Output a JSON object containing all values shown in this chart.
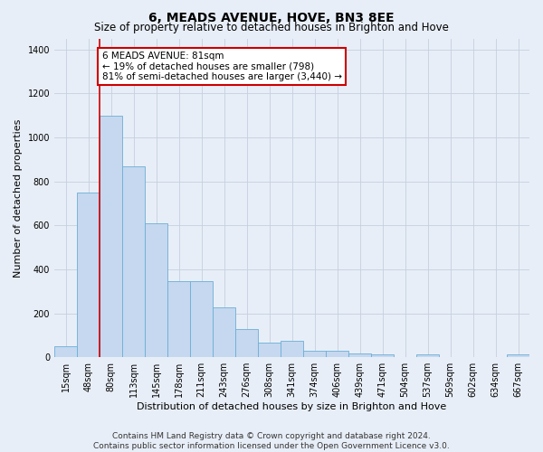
{
  "title": "6, MEADS AVENUE, HOVE, BN3 8EE",
  "subtitle": "Size of property relative to detached houses in Brighton and Hove",
  "xlabel": "Distribution of detached houses by size in Brighton and Hove",
  "ylabel": "Number of detached properties",
  "categories": [
    "15sqm",
    "48sqm",
    "80sqm",
    "113sqm",
    "145sqm",
    "178sqm",
    "211sqm",
    "243sqm",
    "276sqm",
    "308sqm",
    "341sqm",
    "374sqm",
    "406sqm",
    "439sqm",
    "471sqm",
    "504sqm",
    "537sqm",
    "569sqm",
    "602sqm",
    "634sqm",
    "667sqm"
  ],
  "values": [
    52,
    750,
    1100,
    870,
    610,
    345,
    345,
    225,
    130,
    68,
    75,
    28,
    28,
    18,
    12,
    0,
    12,
    0,
    0,
    0,
    14
  ],
  "bar_color": "#c5d8ef",
  "bar_edgecolor": "#6baed6",
  "vline_color": "#cc0000",
  "annotation_text": "6 MEADS AVENUE: 81sqm\n← 19% of detached houses are smaller (798)\n81% of semi-detached houses are larger (3,440) →",
  "annotation_box_color": "#ffffff",
  "annotation_box_edgecolor": "#cc0000",
  "ylim": [
    0,
    1450
  ],
  "yticks": [
    0,
    200,
    400,
    600,
    800,
    1000,
    1200,
    1400
  ],
  "bg_color": "#e8eef7",
  "plot_bg_color": "#e8eef7",
  "grid_color": "#c5cfe0",
  "footer_line1": "Contains HM Land Registry data © Crown copyright and database right 2024.",
  "footer_line2": "Contains public sector information licensed under the Open Government Licence v3.0.",
  "title_fontsize": 10,
  "subtitle_fontsize": 8.5,
  "xlabel_fontsize": 8,
  "ylabel_fontsize": 8,
  "tick_fontsize": 7,
  "footer_fontsize": 6.5,
  "annotation_fontsize": 7.5
}
